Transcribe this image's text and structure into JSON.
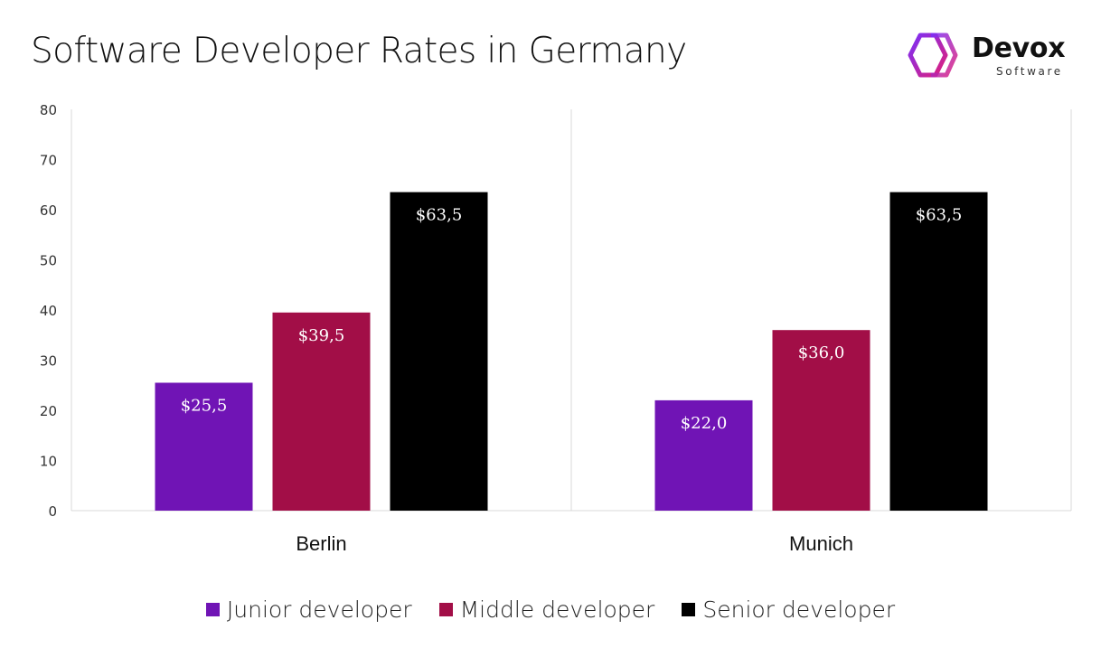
{
  "page": {
    "title": "Software Developer Rates in Germany"
  },
  "logo": {
    "name": "Devox",
    "subtitle": "Software",
    "mark_icon": "hexagon-logo-icon",
    "gradient": [
      "#7B2FF7",
      "#E0207A"
    ]
  },
  "chart_data": {
    "type": "bar",
    "title": "Software Developer Rates in Germany",
    "xlabel": "",
    "ylabel": "",
    "categories": [
      "Berlin",
      "Munich"
    ],
    "series": [
      {
        "name": "Junior developer",
        "values": [
          25.5,
          22.0
        ],
        "labels": [
          "$25,5",
          "$22,0"
        ],
        "color": "#7014B5"
      },
      {
        "name": "Middle developer",
        "values": [
          39.5,
          36.0
        ],
        "labels": [
          "$39,5",
          "$36,0"
        ],
        "color": "#A20E47"
      },
      {
        "name": "Senior developer",
        "values": [
          63.5,
          63.5
        ],
        "labels": [
          "$63,5",
          "$63,5"
        ],
        "color": "#000000"
      }
    ],
    "ylim": [
      0,
      80
    ],
    "yticks": [
      0,
      10,
      20,
      30,
      40,
      50,
      60,
      70,
      80
    ],
    "grid": false,
    "legend": "bottom-center",
    "data_label_color": "#FFFFFF",
    "axis_color": "#D9D9D9"
  }
}
